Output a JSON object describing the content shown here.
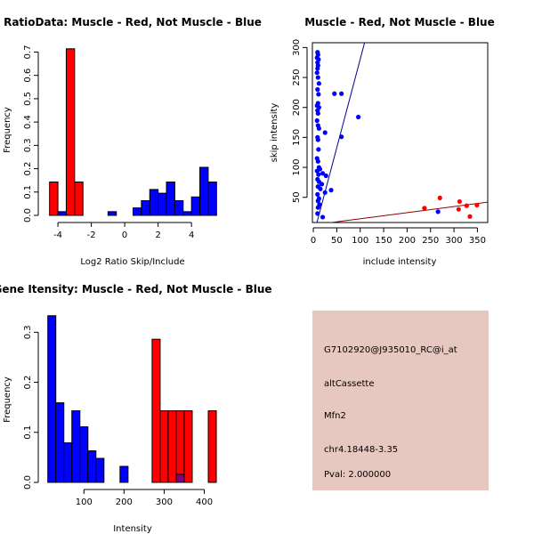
{
  "colors": {
    "muscle": "#ff0000",
    "not_muscle": "#0000ff",
    "overlap": "#7f007f",
    "info_bg": "#e6c8c0",
    "pval": "#8b0000",
    "line_blue": "#00008b",
    "line_red": "#8b0000"
  },
  "chart_data": [
    {
      "id": "ratio_hist",
      "type": "bar",
      "title": "RatioData: Muscle - Red, Not Muscle - Blue",
      "xlabel": "Log2 Ratio Skip/Include",
      "ylabel": "Frequency",
      "xlim": [
        -4.75,
        5.75
      ],
      "ylim": [
        0,
        0.74
      ],
      "xticks": [
        -4,
        -2,
        0,
        2,
        4
      ],
      "yticks": [
        0.0,
        0.1,
        0.2,
        0.3,
        0.4,
        0.5,
        0.6,
        0.7
      ],
      "bin_width": 0.5,
      "series": [
        {
          "name": "Muscle",
          "color": "red",
          "bins": [
            {
              "x0": -4.5,
              "v": 0.143
            },
            {
              "x0": -3.5,
              "v": 0.714
            },
            {
              "x0": -3.0,
              "v": 0.143
            }
          ]
        },
        {
          "name": "Not Muscle",
          "color": "blue",
          "bins": [
            {
              "x0": -4.0,
              "v": 0.016
            },
            {
              "x0": -1.0,
              "v": 0.016
            },
            {
              "x0": 0.5,
              "v": 0.032
            },
            {
              "x0": 1.0,
              "v": 0.063
            },
            {
              "x0": 1.5,
              "v": 0.111
            },
            {
              "x0": 2.0,
              "v": 0.095
            },
            {
              "x0": 2.5,
              "v": 0.143
            },
            {
              "x0": 3.0,
              "v": 0.063
            },
            {
              "x0": 3.5,
              "v": 0.016
            },
            {
              "x0": 4.0,
              "v": 0.079
            },
            {
              "x0": 4.5,
              "v": 0.206
            },
            {
              "x0": 5.0,
              "v": 0.143
            }
          ]
        }
      ]
    },
    {
      "id": "scatter",
      "type": "scatter",
      "title": "Muscle - Red, Not Muscle - Blue",
      "xlabel": "include intensity",
      "ylabel": "skip intensity",
      "xlim": [
        -2,
        372
      ],
      "ylim": [
        8,
        308
      ],
      "xticks": [
        0,
        50,
        100,
        150,
        200,
        250,
        300,
        350
      ],
      "yticks": [
        50,
        100,
        150,
        200,
        250,
        300
      ],
      "series": [
        {
          "name": "Not Muscle",
          "color": "blue",
          "points": [
            [
              9,
              292
            ],
            [
              10,
              288
            ],
            [
              8,
              283
            ],
            [
              11,
              280
            ],
            [
              9,
              275
            ],
            [
              10,
              270
            ],
            [
              9,
              265
            ],
            [
              8,
              258
            ],
            [
              10,
              250
            ],
            [
              12,
              240
            ],
            [
              9,
              230
            ],
            [
              11,
              222
            ],
            [
              45,
              223
            ],
            [
              60,
              223
            ],
            [
              10,
              207
            ],
            [
              8,
              203
            ],
            [
              12,
              200
            ],
            [
              9,
              195
            ],
            [
              10,
              190
            ],
            [
              96,
              184
            ],
            [
              8,
              178
            ],
            [
              10,
              170
            ],
            [
              12,
              165
            ],
            [
              25,
              158
            ],
            [
              60,
              151
            ],
            [
              9,
              150
            ],
            [
              10,
              146
            ],
            [
              11,
              130
            ],
            [
              8,
              115
            ],
            [
              10,
              110
            ],
            [
              12,
              100
            ],
            [
              14,
              97
            ],
            [
              8,
              94
            ],
            [
              20,
              90
            ],
            [
              11,
              88
            ],
            [
              27,
              86
            ],
            [
              9,
              80
            ],
            [
              12,
              76
            ],
            [
              18,
              72
            ],
            [
              10,
              68
            ],
            [
              15,
              64
            ],
            [
              38,
              62
            ],
            [
              25,
              58
            ],
            [
              9,
              55
            ],
            [
              12,
              48
            ],
            [
              10,
              44
            ],
            [
              13,
              38
            ],
            [
              10,
              33
            ],
            [
              20,
              17
            ],
            [
              9,
              23
            ],
            [
              266,
              26
            ]
          ]
        },
        {
          "name": "Muscle",
          "color": "red",
          "points": [
            [
              237,
              32
            ],
            [
              270,
              49
            ],
            [
              312,
              43
            ],
            [
              327,
              36
            ],
            [
              349,
              37
            ],
            [
              334,
              18
            ],
            [
              310,
              30
            ]
          ]
        }
      ],
      "lines": [
        {
          "color": "blue",
          "x1": 5,
          "y1": 0,
          "x2": 110,
          "y2": 310
        },
        {
          "color": "red",
          "x1": 0,
          "y1": 4,
          "x2": 372,
          "y2": 42
        }
      ]
    },
    {
      "id": "intensity_hist",
      "type": "bar",
      "title": "Gene Itensity: Muscle - Red, Not Muscle - Blue",
      "xlabel": "Intensity",
      "ylabel": "Frequency",
      "xlim": [
        4,
        441
      ],
      "ylim": [
        0,
        0.345
      ],
      "xticks": [
        100,
        200,
        300,
        400
      ],
      "yticks": [
        0.0,
        0.1,
        0.2,
        0.3
      ],
      "bin_width": 20,
      "series": [
        {
          "name": "Muscle",
          "color": "red",
          "bins": [
            {
              "x0": 270,
              "v": 0.286
            },
            {
              "x0": 290,
              "v": 0.143
            },
            {
              "x0": 310,
              "v": 0.143
            },
            {
              "x0": 330,
              "v": 0.143
            },
            {
              "x0": 350,
              "v": 0.143
            },
            {
              "x0": 410,
              "v": 0.143
            }
          ]
        },
        {
          "name": "Not Muscle",
          "color": "blue",
          "bins": [
            {
              "x0": 10,
              "v": 0.333
            },
            {
              "x0": 30,
              "v": 0.159
            },
            {
              "x0": 50,
              "v": 0.079
            },
            {
              "x0": 70,
              "v": 0.143
            },
            {
              "x0": 90,
              "v": 0.111
            },
            {
              "x0": 110,
              "v": 0.063
            },
            {
              "x0": 130,
              "v": 0.048
            },
            {
              "x0": 190,
              "v": 0.032
            },
            {
              "x0": 330,
              "v": 0.016
            }
          ]
        }
      ]
    }
  ],
  "info": {
    "probe_id": "G7102920@J935010_RC@i_at",
    "event_type": "altCassette",
    "gene": "Mfn2",
    "location": "chr4.18448-3.35",
    "pval": "Pval: 2.000000"
  }
}
